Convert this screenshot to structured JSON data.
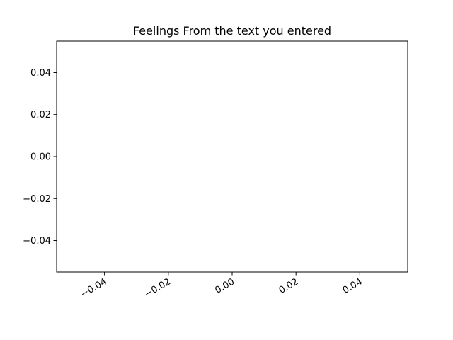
{
  "chart_data": {
    "type": "line",
    "title": "Feelings From the text you entered",
    "xlabel": "",
    "ylabel": "",
    "x": [],
    "series": [],
    "xlim": [
      -0.055,
      0.055
    ],
    "ylim": [
      -0.055,
      0.055
    ],
    "x_ticks": [
      -0.04,
      -0.02,
      0.0,
      0.02,
      0.04
    ],
    "x_tick_labels": [
      "−0.04",
      "−0.02",
      "0.00",
      "0.02",
      "0.04"
    ],
    "y_ticks": [
      -0.04,
      -0.02,
      0.0,
      0.02,
      0.04
    ],
    "y_tick_labels": [
      "−0.04",
      "−0.02",
      "0.00",
      "0.02",
      "0.04"
    ],
    "x_tick_label_rotation": -30,
    "grid": false,
    "legend": "none"
  }
}
